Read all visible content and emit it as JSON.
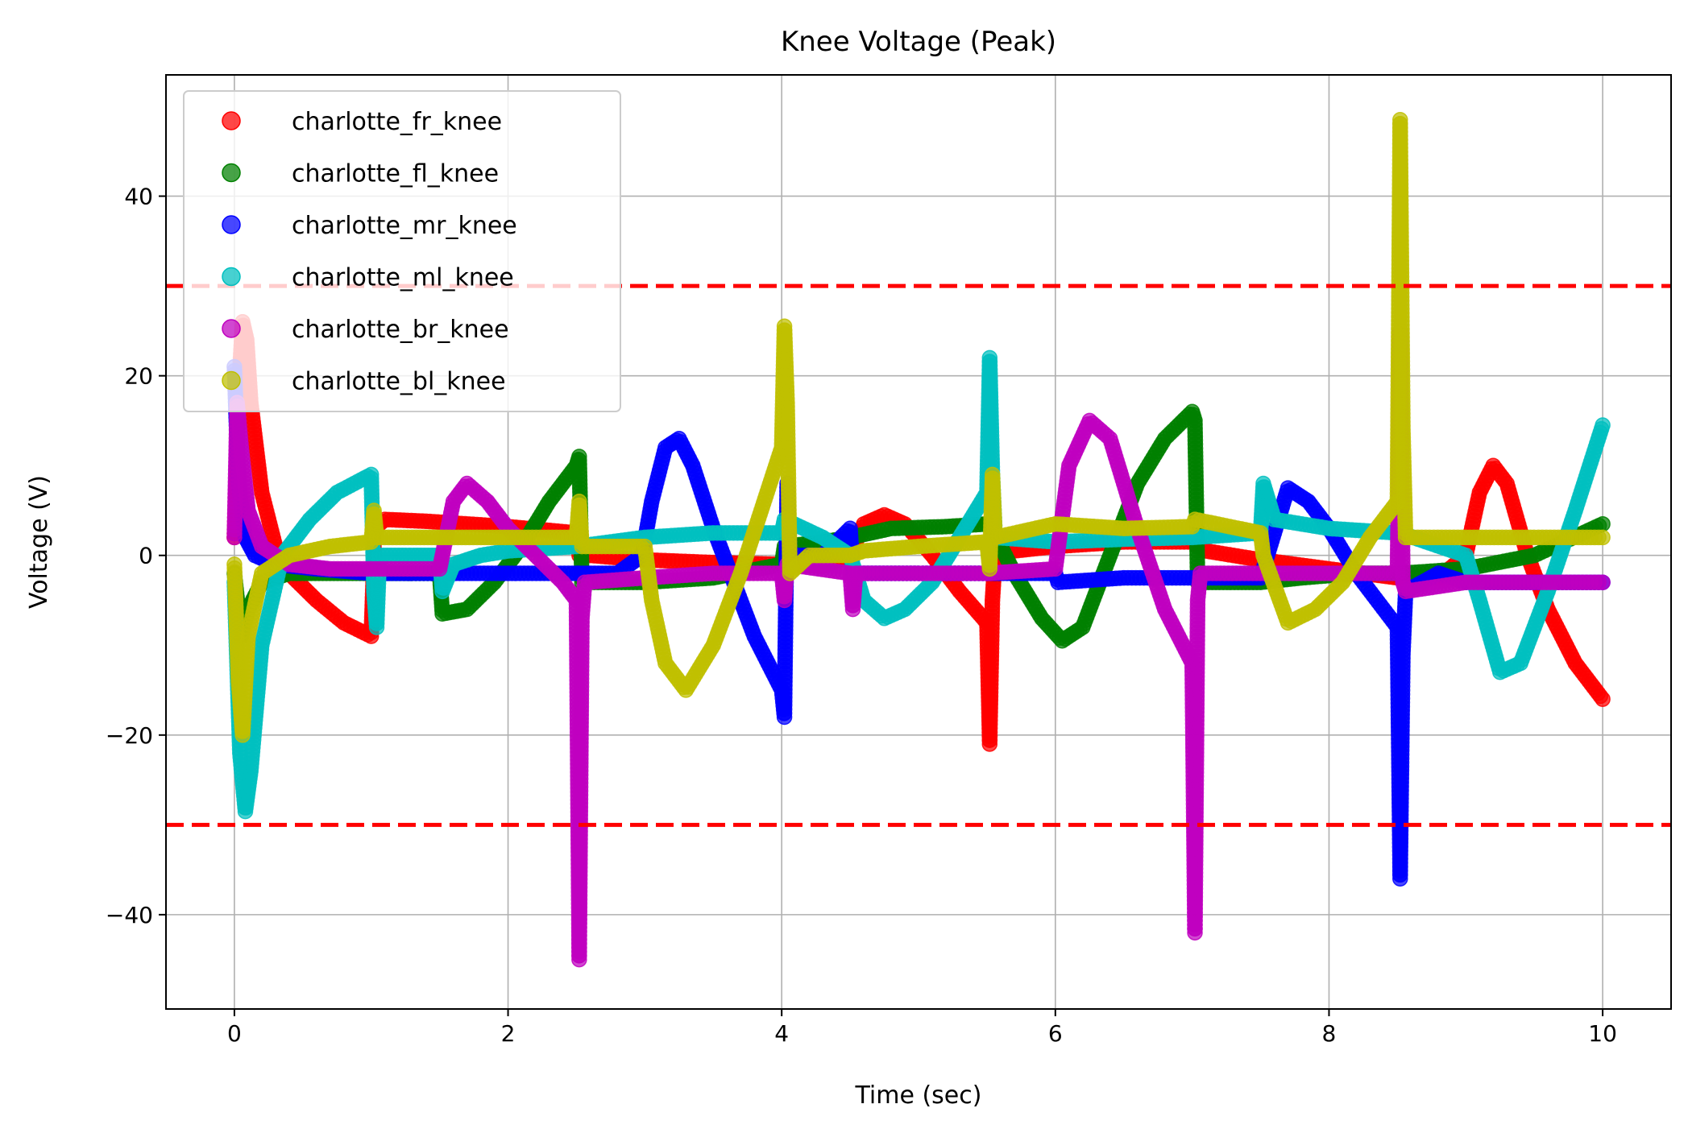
{
  "chart_data": {
    "type": "scatter",
    "title": "Knee Voltage (Peak)",
    "xlabel": "Time (sec)",
    "ylabel": "Voltage (V)",
    "xlim": [
      -0.5,
      10.5
    ],
    "ylim": [
      -50.5,
      53.5
    ],
    "xticks": [
      0,
      2,
      4,
      6,
      8,
      10
    ],
    "yticks": [
      -40,
      -20,
      0,
      20,
      40
    ],
    "xtick_labels": [
      "0",
      "2",
      "4",
      "6",
      "8",
      "10"
    ],
    "ytick_labels": [
      "−40",
      "−20",
      "0",
      "20",
      "40"
    ],
    "grid": true,
    "legend_position": "top-left",
    "thresholds": [
      {
        "y": 30,
        "color": "#ff0000",
        "style": "dashed"
      },
      {
        "y": -30,
        "color": "#ff0000",
        "style": "dashed"
      }
    ],
    "series": [
      {
        "name": "charlotte_fr_knee",
        "color": "#ff0000",
        "points": [
          [
            0,
            2
          ],
          [
            0.03,
            18
          ],
          [
            0.06,
            26
          ],
          [
            0.09,
            24
          ],
          [
            0.12,
            17
          ],
          [
            0.2,
            7
          ],
          [
            0.3,
            1
          ],
          [
            0.4,
            -2
          ],
          [
            0.6,
            -5
          ],
          [
            0.8,
            -7.5
          ],
          [
            1.0,
            -9
          ],
          [
            1.02,
            0
          ],
          [
            1.02,
            3
          ],
          [
            1.1,
            4
          ],
          [
            1.4,
            3.8
          ],
          [
            2.0,
            3.2
          ],
          [
            2.5,
            2.5
          ],
          [
            2.52,
            0
          ],
          [
            2.6,
            0
          ],
          [
            3.0,
            -0.5
          ],
          [
            3.5,
            -0.8
          ],
          [
            4.0,
            -1
          ],
          [
            4.02,
            -1
          ],
          [
            4.3,
            -1.2
          ],
          [
            4.5,
            0
          ],
          [
            4.6,
            3.5
          ],
          [
            4.75,
            4.5
          ],
          [
            4.9,
            3.5
          ],
          [
            5.1,
            0
          ],
          [
            5.3,
            -4
          ],
          [
            5.5,
            -7.5
          ],
          [
            5.52,
            -21
          ],
          [
            5.54,
            -5
          ],
          [
            5.56,
            0
          ],
          [
            5.7,
            0.5
          ],
          [
            6.0,
            1
          ],
          [
            6.5,
            1.5
          ],
          [
            7.0,
            1.5
          ],
          [
            7.1,
            0.5
          ],
          [
            7.5,
            -0.5
          ],
          [
            8.0,
            -1.5
          ],
          [
            8.5,
            -2.5
          ],
          [
            8.52,
            -2.5
          ],
          [
            8.8,
            -2.5
          ],
          [
            9.0,
            0
          ],
          [
            9.1,
            7
          ],
          [
            9.2,
            10
          ],
          [
            9.3,
            8
          ],
          [
            9.45,
            0
          ],
          [
            9.6,
            -6
          ],
          [
            9.8,
            -12
          ],
          [
            10.0,
            -16
          ]
        ]
      },
      {
        "name": "charlotte_fl_knee",
        "color": "#008000",
        "points": [
          [
            0,
            -2
          ],
          [
            0.05,
            -9
          ],
          [
            0.1,
            -6
          ],
          [
            0.2,
            -3
          ],
          [
            0.4,
            -2
          ],
          [
            0.7,
            -2
          ],
          [
            1.0,
            -2
          ],
          [
            1.02,
            -2
          ],
          [
            1.3,
            -2
          ],
          [
            1.5,
            -2
          ],
          [
            1.52,
            -6.5
          ],
          [
            1.7,
            -6
          ],
          [
            1.9,
            -3
          ],
          [
            2.1,
            1
          ],
          [
            2.3,
            6
          ],
          [
            2.5,
            10
          ],
          [
            2.52,
            11
          ],
          [
            2.54,
            -3
          ],
          [
            2.6,
            -3
          ],
          [
            3.0,
            -3
          ],
          [
            3.5,
            -2.5
          ],
          [
            4.0,
            -1
          ],
          [
            4.02,
            1
          ],
          [
            4.3,
            1.5
          ],
          [
            4.5,
            2
          ],
          [
            4.8,
            3
          ],
          [
            5.2,
            3.2
          ],
          [
            5.5,
            3.5
          ],
          [
            5.52,
            3.5
          ],
          [
            5.7,
            -2
          ],
          [
            5.9,
            -7
          ],
          [
            6.05,
            -9.5
          ],
          [
            6.2,
            -8
          ],
          [
            6.4,
            0
          ],
          [
            6.6,
            8
          ],
          [
            6.8,
            13
          ],
          [
            7.0,
            16
          ],
          [
            7.02,
            15
          ],
          [
            7.04,
            -3
          ],
          [
            7.2,
            -3
          ],
          [
            7.5,
            -3
          ],
          [
            7.8,
            -2.5
          ],
          [
            8.2,
            -2
          ],
          [
            8.5,
            -2
          ],
          [
            8.52,
            -2
          ],
          [
            9.0,
            -1.5
          ],
          [
            9.5,
            0
          ],
          [
            10.0,
            3.5
          ]
        ]
      },
      {
        "name": "charlotte_mr_knee",
        "color": "#0000ff",
        "points": [
          [
            0,
            21
          ],
          [
            0.03,
            8
          ],
          [
            0.08,
            2
          ],
          [
            0.15,
            0
          ],
          [
            0.3,
            -1
          ],
          [
            0.6,
            -1.5
          ],
          [
            1.0,
            -2
          ],
          [
            1.5,
            -2
          ],
          [
            2.0,
            -2
          ],
          [
            2.5,
            -2
          ],
          [
            2.52,
            -2
          ],
          [
            2.8,
            -2
          ],
          [
            2.98,
            0
          ],
          [
            3.05,
            6
          ],
          [
            3.15,
            12
          ],
          [
            3.25,
            13
          ],
          [
            3.35,
            10
          ],
          [
            3.5,
            3
          ],
          [
            3.65,
            -3
          ],
          [
            3.8,
            -9
          ],
          [
            4.0,
            -15
          ],
          [
            4.02,
            -18
          ],
          [
            4.04,
            8
          ],
          [
            4.06,
            0
          ],
          [
            4.3,
            0
          ],
          [
            4.5,
            3
          ],
          [
            4.52,
            -2
          ],
          [
            5.0,
            -2
          ],
          [
            5.5,
            -2
          ],
          [
            6.0,
            -2
          ],
          [
            6.02,
            -3
          ],
          [
            6.5,
            -2.5
          ],
          [
            7.0,
            -2.5
          ],
          [
            7.5,
            -2.5
          ],
          [
            7.7,
            7.5
          ],
          [
            7.85,
            6
          ],
          [
            8.0,
            3
          ],
          [
            8.2,
            -2
          ],
          [
            8.5,
            -8
          ],
          [
            8.52,
            -36
          ],
          [
            8.54,
            -11
          ],
          [
            8.56,
            -4
          ],
          [
            8.8,
            -2
          ],
          [
            9.0,
            -3
          ],
          [
            9.5,
            -3
          ],
          [
            10.0,
            -3
          ]
        ]
      },
      {
        "name": "charlotte_ml_knee",
        "color": "#00bfbf",
        "points": [
          [
            0,
            -3
          ],
          [
            0.04,
            -22
          ],
          [
            0.08,
            -28.5
          ],
          [
            0.12,
            -24
          ],
          [
            0.2,
            -10
          ],
          [
            0.35,
            0
          ],
          [
            0.55,
            4
          ],
          [
            0.75,
            7
          ],
          [
            1.0,
            9
          ],
          [
            1.02,
            -4
          ],
          [
            1.04,
            -8
          ],
          [
            1.06,
            0
          ],
          [
            1.2,
            0
          ],
          [
            1.5,
            0
          ],
          [
            1.52,
            -4
          ],
          [
            1.6,
            -1
          ],
          [
            1.8,
            0
          ],
          [
            2.0,
            0.5
          ],
          [
            2.5,
            1
          ],
          [
            3.0,
            2
          ],
          [
            3.5,
            2.5
          ],
          [
            4.0,
            2.5
          ],
          [
            4.02,
            4
          ],
          [
            4.3,
            2
          ],
          [
            4.5,
            0
          ],
          [
            4.6,
            -5
          ],
          [
            4.75,
            -7
          ],
          [
            4.9,
            -6
          ],
          [
            5.1,
            -3
          ],
          [
            5.3,
            2
          ],
          [
            5.5,
            7
          ],
          [
            5.52,
            22
          ],
          [
            5.54,
            9
          ],
          [
            5.56,
            2
          ],
          [
            6.0,
            1.5
          ],
          [
            6.5,
            1.8
          ],
          [
            7.0,
            2
          ],
          [
            7.5,
            2.5
          ],
          [
            7.52,
            8
          ],
          [
            7.6,
            4
          ],
          [
            8.0,
            3
          ],
          [
            8.5,
            2.5
          ],
          [
            8.52,
            2.5
          ],
          [
            9.0,
            0
          ],
          [
            9.1,
            -5
          ],
          [
            9.25,
            -13
          ],
          [
            9.4,
            -12
          ],
          [
            9.6,
            -4
          ],
          [
            9.8,
            5
          ],
          [
            10.0,
            14.5
          ]
        ]
      },
      {
        "name": "charlotte_br_knee",
        "color": "#bf00bf",
        "points": [
          [
            0,
            2
          ],
          [
            0.02,
            17
          ],
          [
            0.05,
            12
          ],
          [
            0.1,
            5
          ],
          [
            0.2,
            1
          ],
          [
            0.4,
            -1
          ],
          [
            0.7,
            -1.5
          ],
          [
            1.0,
            -1.5
          ],
          [
            1.5,
            -1.5
          ],
          [
            1.52,
            0
          ],
          [
            1.6,
            6
          ],
          [
            1.7,
            8
          ],
          [
            1.85,
            6
          ],
          [
            2.0,
            3
          ],
          [
            2.2,
            0
          ],
          [
            2.4,
            -3
          ],
          [
            2.5,
            -5
          ],
          [
            2.52,
            -45
          ],
          [
            2.54,
            -7
          ],
          [
            2.56,
            -3
          ],
          [
            3.0,
            -2.5
          ],
          [
            3.5,
            -2
          ],
          [
            4.0,
            -2
          ],
          [
            4.02,
            -5
          ],
          [
            4.04,
            -1
          ],
          [
            4.5,
            -2
          ],
          [
            4.52,
            -6
          ],
          [
            4.54,
            -2
          ],
          [
            5.0,
            -2
          ],
          [
            5.5,
            -2
          ],
          [
            6.0,
            -1.5
          ],
          [
            6.1,
            10
          ],
          [
            6.25,
            15
          ],
          [
            6.4,
            13
          ],
          [
            6.6,
            3
          ],
          [
            6.8,
            -6
          ],
          [
            7.0,
            -12
          ],
          [
            7.02,
            -42
          ],
          [
            7.04,
            -5
          ],
          [
            7.06,
            -2
          ],
          [
            7.5,
            -2
          ],
          [
            8.0,
            -2
          ],
          [
            8.5,
            -2
          ],
          [
            8.52,
            25
          ],
          [
            8.54,
            -3
          ],
          [
            8.56,
            -4
          ],
          [
            9.0,
            -3
          ],
          [
            9.5,
            -3
          ],
          [
            10.0,
            -3
          ]
        ]
      },
      {
        "name": "charlotte_bl_knee",
        "color": "#bfbf00",
        "points": [
          [
            0,
            -1
          ],
          [
            0.03,
            -14
          ],
          [
            0.06,
            -20
          ],
          [
            0.1,
            -9
          ],
          [
            0.2,
            -2
          ],
          [
            0.4,
            0
          ],
          [
            0.7,
            1
          ],
          [
            1.0,
            1.5
          ],
          [
            1.02,
            5
          ],
          [
            1.04,
            2
          ],
          [
            1.3,
            2
          ],
          [
            1.5,
            2
          ],
          [
            1.52,
            2
          ],
          [
            2.0,
            2
          ],
          [
            2.5,
            2
          ],
          [
            2.52,
            6
          ],
          [
            2.54,
            1
          ],
          [
            3.0,
            1
          ],
          [
            3.05,
            -5
          ],
          [
            3.15,
            -12
          ],
          [
            3.3,
            -15
          ],
          [
            3.5,
            -10
          ],
          [
            3.7,
            -2
          ],
          [
            3.85,
            5
          ],
          [
            4.0,
            12
          ],
          [
            4.02,
            25.5
          ],
          [
            4.04,
            17
          ],
          [
            4.06,
            -2
          ],
          [
            4.2,
            0
          ],
          [
            4.5,
            0
          ],
          [
            4.6,
            0.5
          ],
          [
            5.0,
            1
          ],
          [
            5.5,
            1.5
          ],
          [
            5.52,
            -1.5
          ],
          [
            5.54,
            9
          ],
          [
            5.56,
            2
          ],
          [
            6.0,
            3.5
          ],
          [
            6.5,
            3
          ],
          [
            7.0,
            3.2
          ],
          [
            7.02,
            4
          ],
          [
            7.5,
            2.5
          ],
          [
            7.52,
            0
          ],
          [
            7.7,
            -7.5
          ],
          [
            7.9,
            -6
          ],
          [
            8.1,
            -3
          ],
          [
            8.3,
            2
          ],
          [
            8.5,
            6
          ],
          [
            8.52,
            48.5
          ],
          [
            8.54,
            14
          ],
          [
            8.56,
            2
          ],
          [
            9.0,
            2
          ],
          [
            9.5,
            2
          ],
          [
            10.0,
            2
          ]
        ]
      }
    ]
  }
}
